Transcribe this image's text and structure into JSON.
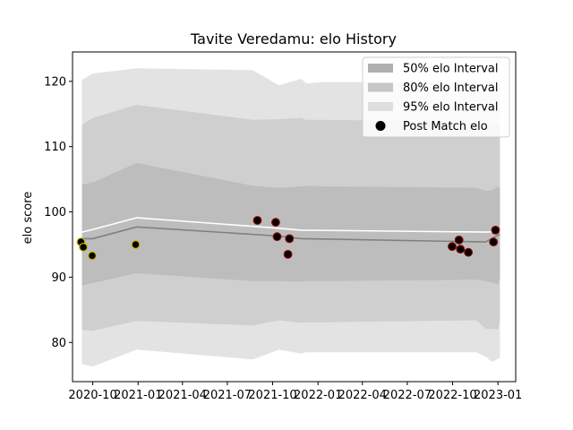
{
  "chart_data": {
    "type": "line",
    "title": "Tavite Veredamu: elo History",
    "xlabel": "",
    "ylabel": "elo score",
    "xlim": [
      "2020-08-21",
      "2023-02-06"
    ],
    "ylim": [
      74,
      124.5
    ],
    "x_ticks": [
      "2020-10",
      "2021-01",
      "2021-04",
      "2021-07",
      "2021-10",
      "2022-01",
      "2022-04",
      "2022-07",
      "2022-10",
      "2023-01"
    ],
    "y_ticks": [
      80,
      90,
      100,
      110,
      120
    ],
    "grid": false,
    "legend_position": "top-right",
    "legend": [
      {
        "label": "50% elo Interval",
        "kind": "patch",
        "color": "#b0b0b0"
      },
      {
        "label": "80% elo Interval",
        "kind": "patch",
        "color": "#c8c8c8"
      },
      {
        "label": "95% elo Interval",
        "kind": "patch",
        "color": "#e0e0e0"
      },
      {
        "label": "Post Match elo",
        "kind": "marker",
        "color": "#000000"
      }
    ],
    "bands": {
      "dates": [
        "2020-09-09",
        "2020-10-01",
        "2020-12-29",
        "2021-08-22",
        "2021-10-14",
        "2021-11-28",
        "2021-12-08",
        "2022-01-16",
        "2022-11-18",
        "2022-12-07",
        "2022-12-20",
        "2023-01-01",
        "2023-01-05"
      ],
      "p95_low": [
        76.7,
        76.3,
        78.9,
        77.4,
        78.9,
        78.3,
        78.5,
        78.5,
        78.5,
        77.8,
        77.0,
        77.5,
        77.6
      ],
      "p95_high": [
        120.2,
        121.2,
        122.0,
        121.7,
        119.4,
        120.4,
        119.7,
        119.9,
        119.8,
        119.4,
        119.3,
        119.2,
        119.0
      ],
      "p80_low": [
        81.9,
        81.8,
        83.3,
        82.6,
        83.4,
        83.0,
        83.1,
        83.1,
        83.4,
        82.1,
        82.1,
        82.0,
        83.2
      ],
      "p80_high": [
        113.3,
        114.4,
        116.4,
        114.1,
        114.2,
        114.4,
        114.1,
        114.1,
        113.8,
        113.6,
        113.5,
        113.6,
        113.5
      ],
      "p50_low": [
        88.7,
        89.1,
        90.6,
        89.4,
        89.4,
        89.3,
        89.4,
        89.4,
        89.6,
        89.4,
        89.2,
        88.9,
        89.8
      ],
      "p50_high": [
        104.2,
        104.5,
        107.5,
        104.0,
        103.7,
        103.9,
        104.0,
        103.9,
        103.7,
        103.2,
        103.3,
        103.9,
        103.6
      ]
    },
    "series": [
      {
        "values": {
          "x": [
            "2020-09-09",
            "2020-10-01",
            "2020-12-29",
            "2021-10-14",
            "2021-11-28",
            "2022-12-07",
            "2023-01-05"
          ],
          "y": [
            95.9,
            95.9,
            97.7,
            96.3,
            95.9,
            95.4,
            96.6
          ]
        },
        "color": "#808080"
      },
      {
        "values": {
          "x": [
            "2020-09-09",
            "2020-10-01",
            "2020-12-29",
            "2021-10-14",
            "2021-11-28",
            "2022-12-07",
            "2023-01-05"
          ],
          "y": [
            96.9,
            97.3,
            99.1,
            97.5,
            97.2,
            96.9,
            97.0
          ]
        },
        "color": "#ffffff"
      }
    ],
    "points": [
      {
        "date": "2020-09-07",
        "elo": 95.4,
        "edge": "#c8b400"
      },
      {
        "date": "2020-09-12",
        "elo": 94.6,
        "edge": "#c8b400"
      },
      {
        "date": "2020-09-30",
        "elo": 93.3,
        "edge": "#c8b400"
      },
      {
        "date": "2020-12-27",
        "elo": 95.0,
        "edge": "#c8b400"
      },
      {
        "date": "2021-08-31",
        "elo": 98.7,
        "edge": "#8b0000"
      },
      {
        "date": "2021-10-07",
        "elo": 98.4,
        "edge": "#8b0000"
      },
      {
        "date": "2021-10-10",
        "elo": 96.2,
        "edge": "#8b0000"
      },
      {
        "date": "2021-11-01",
        "elo": 93.5,
        "edge": "#8b0000"
      },
      {
        "date": "2021-11-04",
        "elo": 95.9,
        "edge": "#8b0000"
      },
      {
        "date": "2022-09-30",
        "elo": 94.7,
        "edge": "#8b0000"
      },
      {
        "date": "2022-10-14",
        "elo": 95.7,
        "edge": "#8b0000"
      },
      {
        "date": "2022-10-17",
        "elo": 94.3,
        "edge": "#8b0000"
      },
      {
        "date": "2022-11-02",
        "elo": 93.8,
        "edge": "#8b0000"
      },
      {
        "date": "2022-12-23",
        "elo": 95.4,
        "edge": "#8b0000"
      },
      {
        "date": "2022-12-27",
        "elo": 97.2,
        "edge": "#8b0000"
      }
    ]
  }
}
